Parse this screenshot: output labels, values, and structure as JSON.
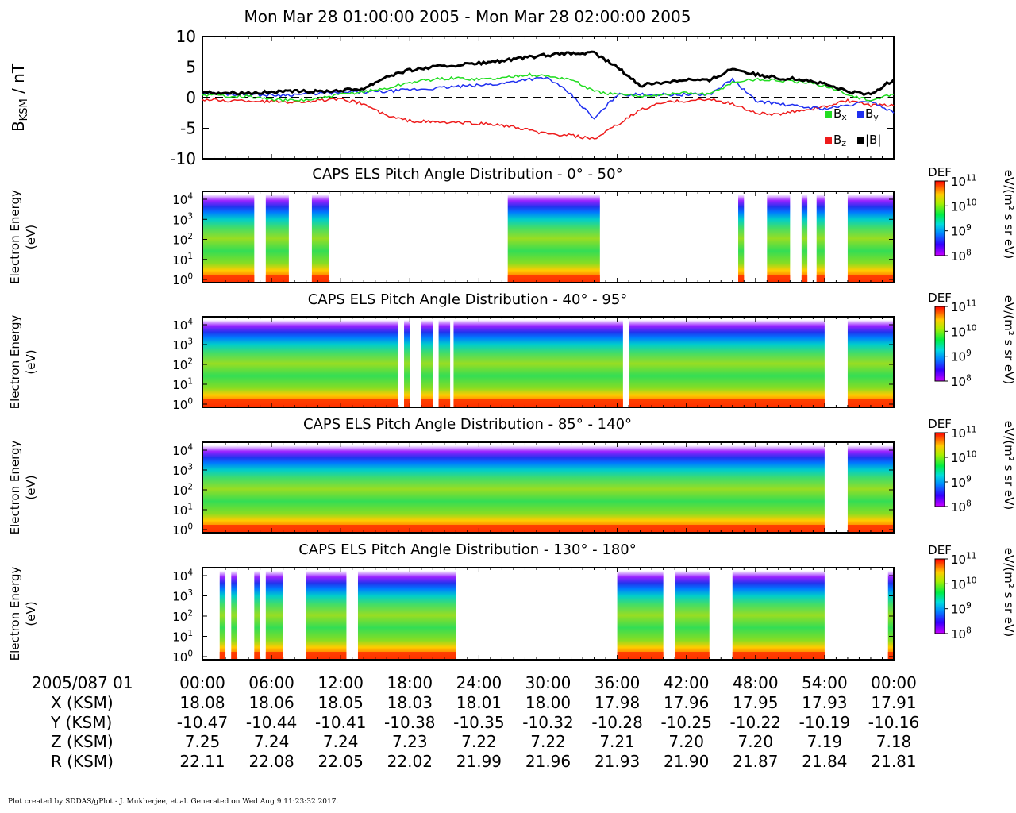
{
  "title": "Mon Mar 28 01:00:00 2005 - Mon Mar 28 02:00:00 2005",
  "footer": "Plot created by SDDAS/gPlot - J. Mukherjee, et al.  Generated on Wed Aug 9 11:23:32 2017.",
  "colors": {
    "bx": "#22dd22",
    "by": "#1f2ff0",
    "bz": "#ee1b1b",
    "bmag": "#000000"
  },
  "chart_data": [
    {
      "type": "line",
      "ylabel": "B_KSM / nT",
      "ylabel_main": "B",
      "ylabel_sub": "KSM",
      "ylabel_unit": " / nT",
      "ylim": [
        -10,
        10
      ],
      "yticks": [
        "10",
        "5",
        "0",
        "-5",
        "-10"
      ],
      "x_unit": "minutes after 2005/087 01:00",
      "x": [
        0,
        2,
        4,
        6,
        8,
        10,
        12,
        14,
        16,
        18,
        20,
        22,
        24,
        26,
        28,
        30,
        32,
        34,
        36,
        38,
        40,
        42,
        44,
        46,
        48,
        50,
        52,
        54,
        56,
        58,
        60
      ],
      "series": [
        {
          "name": "B",
          "sub": "x",
          "key": "bx",
          "values": [
            0.5,
            0.3,
            0.2,
            -0.3,
            -0.5,
            -0.2,
            0.5,
            1.0,
            1.5,
            2.5,
            3.0,
            3.2,
            3.0,
            3.2,
            3.8,
            3.5,
            3.0,
            1.0,
            0.5,
            0.3,
            0.5,
            0.8,
            0.5,
            2.5,
            3.0,
            2.8,
            2.5,
            2.0,
            0.5,
            -0.5,
            0.5
          ]
        },
        {
          "name": "B",
          "sub": "y",
          "key": "by",
          "values": [
            0.8,
            0.6,
            0.5,
            0.4,
            0.5,
            0.7,
            0.8,
            0.9,
            1.0,
            1.3,
            1.5,
            1.8,
            2.0,
            2.3,
            3.0,
            3.2,
            0.5,
            -3.5,
            0.5,
            0.5,
            0.5,
            0.5,
            0.5,
            3.0,
            -0.5,
            -1.0,
            -1.5,
            -1.8,
            -1.3,
            -0.5,
            -2.5
          ]
        },
        {
          "name": "B",
          "sub": "z",
          "key": "bz",
          "values": [
            -0.3,
            -0.5,
            -0.5,
            -0.6,
            -0.7,
            -0.5,
            -0.3,
            -1.0,
            -3.0,
            -3.8,
            -4.0,
            -4.1,
            -4.2,
            -4.5,
            -5.2,
            -6.0,
            -6.2,
            -6.8,
            -4.5,
            -2.0,
            -0.8,
            -0.5,
            -0.3,
            -1.0,
            -2.5,
            -2.8,
            -2.0,
            -1.5,
            -0.5,
            -1.3,
            -1.3
          ]
        },
        {
          "name": "|B|",
          "sub": "",
          "key": "bmag",
          "values": [
            0.9,
            0.8,
            0.8,
            0.9,
            1.0,
            1.0,
            1.2,
            1.5,
            3.5,
            4.5,
            5.0,
            5.3,
            5.6,
            6.0,
            6.5,
            7.0,
            7.2,
            7.3,
            5.0,
            2.0,
            2.5,
            3.0,
            2.8,
            4.8,
            3.8,
            3.2,
            3.0,
            2.2,
            1.0,
            0.5,
            3.0
          ]
        }
      ]
    },
    {
      "type": "heatmap",
      "title": "CAPS ELS Pitch Angle Distribution - 0° - 50°",
      "ylabel": "Electron Energy (eV)",
      "ylabel1": "Electron Energy",
      "ylabel2": "(eV)",
      "yticks": [
        "10",
        "10",
        "10",
        "10",
        "10"
      ],
      "yexp": [
        "4",
        "3",
        "2",
        "1",
        "0"
      ],
      "cbar": {
        "label": "DEF",
        "units": "eV/(m² s sr eV)",
        "ticks": [
          "10",
          "10",
          "10",
          "10"
        ],
        "exp": [
          "11",
          "10",
          "9",
          "8"
        ]
      },
      "coverage_minutes": [
        [
          0,
          4.5
        ],
        [
          5.5,
          7.5
        ],
        [
          9.5,
          11
        ],
        [
          26.5,
          34.5
        ],
        [
          46.5,
          47
        ],
        [
          49,
          51
        ],
        [
          52,
          52.5
        ],
        [
          53.3,
          54
        ],
        [
          56,
          60
        ]
      ]
    },
    {
      "type": "heatmap",
      "title": "CAPS ELS Pitch Angle Distribution - 40° - 95°",
      "ylabel": "Electron Energy (eV)",
      "ylabel1": "Electron Energy",
      "ylabel2": "(eV)",
      "yticks": [
        "10",
        "10",
        "10",
        "10",
        "10"
      ],
      "yexp": [
        "4",
        "3",
        "2",
        "1",
        "0"
      ],
      "cbar": {
        "label": "DEF",
        "units": "eV/(m² s sr eV)",
        "ticks": [
          "10",
          "10",
          "10",
          "10"
        ],
        "exp": [
          "11",
          "10",
          "9",
          "8"
        ]
      },
      "coverage_minutes": [
        [
          0,
          17
        ],
        [
          17.5,
          18
        ],
        [
          19,
          20
        ],
        [
          20.5,
          21.5
        ],
        [
          21.8,
          36.5
        ],
        [
          37,
          54
        ],
        [
          56,
          60
        ]
      ]
    },
    {
      "type": "heatmap",
      "title": "CAPS ELS Pitch Angle Distribution - 85° - 140°",
      "ylabel": "Electron Energy (eV)",
      "ylabel1": "Electron Energy",
      "ylabel2": "(eV)",
      "yticks": [
        "10",
        "10",
        "10",
        "10",
        "10"
      ],
      "yexp": [
        "4",
        "3",
        "2",
        "1",
        "0"
      ],
      "cbar": {
        "label": "DEF",
        "units": "eV/(m² s sr eV)",
        "ticks": [
          "10",
          "10",
          "10",
          "10"
        ],
        "exp": [
          "11",
          "10",
          "9",
          "8"
        ]
      },
      "coverage_minutes": [
        [
          0,
          54
        ],
        [
          56,
          60
        ]
      ]
    },
    {
      "type": "heatmap",
      "title": "CAPS ELS Pitch Angle Distribution - 130° - 180°",
      "ylabel": "Electron Energy (eV)",
      "ylabel1": "Electron Energy",
      "ylabel2": "(eV)",
      "yticks": [
        "10",
        "10",
        "10",
        "10",
        "10"
      ],
      "yexp": [
        "4",
        "3",
        "2",
        "1",
        "0"
      ],
      "cbar": {
        "label": "DEF",
        "units": "eV/(m² s sr eV)",
        "ticks": [
          "10",
          "10",
          "10",
          "10"
        ],
        "exp": [
          "11",
          "10",
          "9",
          "8"
        ]
      },
      "coverage_minutes": [
        [
          1.5,
          2
        ],
        [
          2.5,
          3
        ],
        [
          4.5,
          5
        ],
        [
          5.5,
          7
        ],
        [
          9,
          12.5
        ],
        [
          13.5,
          22
        ],
        [
          36,
          40
        ],
        [
          41,
          44
        ],
        [
          46,
          54
        ],
        [
          59.5,
          60
        ]
      ]
    }
  ],
  "ephemeris": {
    "header": "2005/087 01",
    "ticks": [
      "00:00",
      "06:00",
      "12:00",
      "18:00",
      "24:00",
      "30:00",
      "36:00",
      "42:00",
      "48:00",
      "54:00",
      "00:00"
    ],
    "rows": [
      {
        "label": "X (KSM)",
        "values": [
          "18.08",
          "18.06",
          "18.05",
          "18.03",
          "18.01",
          "18.00",
          "17.98",
          "17.96",
          "17.95",
          "17.93",
          "17.91"
        ]
      },
      {
        "label": "Y (KSM)",
        "values": [
          "-10.47",
          "-10.44",
          "-10.41",
          "-10.38",
          "-10.35",
          "-10.32",
          "-10.28",
          "-10.25",
          "-10.22",
          "-10.19",
          "-10.16"
        ]
      },
      {
        "label": "Z (KSM)",
        "values": [
          "7.25",
          "7.24",
          "7.24",
          "7.23",
          "7.22",
          "7.22",
          "7.21",
          "7.20",
          "7.20",
          "7.19",
          "7.18"
        ]
      },
      {
        "label": "R (KSM)",
        "values": [
          "22.11",
          "22.08",
          "22.05",
          "22.02",
          "21.99",
          "21.96",
          "21.93",
          "21.90",
          "21.87",
          "21.84",
          "21.81"
        ]
      }
    ]
  }
}
